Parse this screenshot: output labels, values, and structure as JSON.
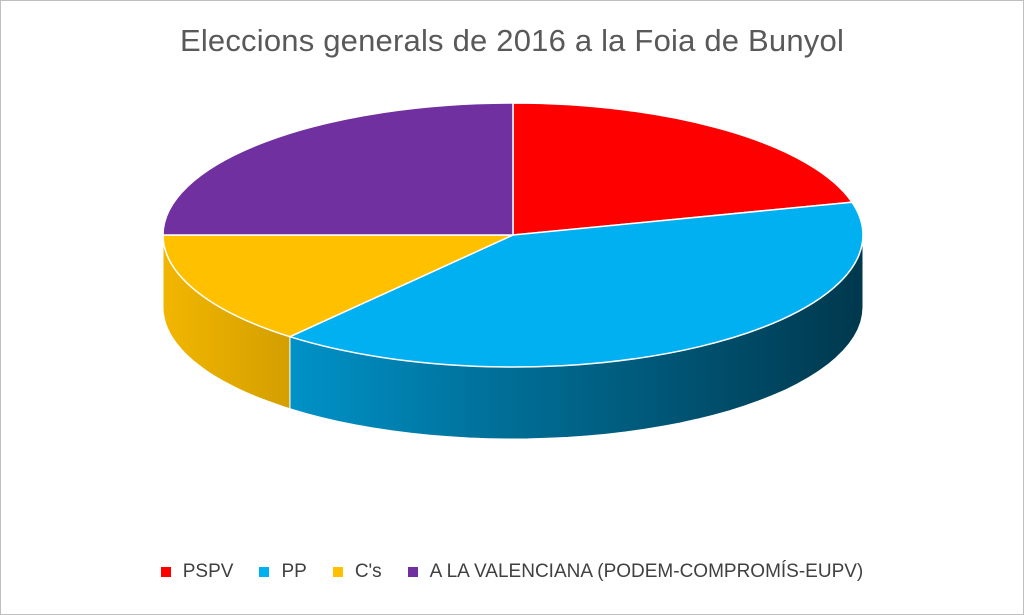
{
  "chart_data": {
    "type": "pie",
    "title": "Eleccions generals de 2016 a la Foia de Bunyol",
    "style": "3d",
    "legend_position": "bottom",
    "slices": [
      {
        "label": "PSPV",
        "value": 21,
        "color": "#ff0000"
      },
      {
        "label": "PP",
        "value": 40,
        "color": "#00b0f0"
      },
      {
        "label": "C's",
        "value": 14,
        "color": "#ffc000"
      },
      {
        "label": "A LA VALENCIANA (PODEM-COMPROMÍS-EUPV)",
        "value": 25,
        "color": "#7030a0"
      }
    ]
  }
}
